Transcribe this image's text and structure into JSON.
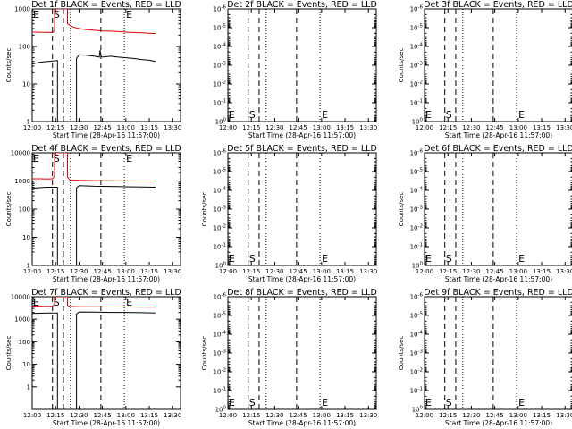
{
  "colors": {
    "events": "#000000",
    "lld": "#e00000",
    "axes": "#000000",
    "background": "#ffffff"
  },
  "x_tick_labels": [
    "12:00",
    "12:15",
    "12:30",
    "12:45",
    "13:00",
    "13:15",
    "13:30"
  ],
  "chart_data": [
    {
      "type": "line",
      "title": "Det 1f BLACK = Events, RED = LLD",
      "xlabel": "Start Time (28-Apr-16 11:57:00)",
      "ylabel": "Counts/sec",
      "scale": "log",
      "ylim": [
        1,
        1000
      ],
      "y_tick_labels": [
        "1",
        "10",
        "100",
        "1000"
      ],
      "markers": [
        "E",
        "S",
        "E"
      ],
      "has_data": true,
      "series": [
        {
          "color": "red",
          "x": [
            0,
            13,
            14.3,
            14.3,
            15,
            22.6,
            22.6,
            24,
            26,
            30,
            35,
            40,
            45,
            50,
            55,
            60,
            65,
            70,
            75,
            79
          ],
          "y": [
            240,
            235,
            260,
            1000,
            1000,
            1000,
            400,
            370,
            330,
            300,
            280,
            270,
            260,
            255,
            250,
            240,
            235,
            230,
            225,
            220
          ]
        },
        {
          "color": "black",
          "x": [
            0,
            5,
            10,
            16.2,
            16.2,
            28.4,
            28.4,
            30,
            35,
            40,
            43,
            43.5,
            44,
            45,
            50,
            55,
            60,
            65,
            70,
            75,
            79
          ],
          "y": [
            34,
            38,
            40,
            42,
            1,
            1,
            48,
            60,
            58,
            55,
            52,
            80,
            55,
            52,
            55,
            52,
            50,
            48,
            45,
            43,
            40
          ]
        }
      ]
    },
    {
      "type": "line",
      "title": "Det 2f BLACK = Events, RED = LLD",
      "xlabel": "Start Time (28-Apr-16 11:57:00)",
      "ylabel": "",
      "scale": "log",
      "ylim": [
        1,
        1e-06
      ],
      "y_tick_labels": [
        "10^0",
        "10^-1",
        "10^-2",
        "10^-3",
        "10^-4",
        "10^-5",
        "10^-6"
      ],
      "markers": [
        "E",
        "S",
        "E"
      ],
      "has_data": false,
      "series": []
    },
    {
      "type": "line",
      "title": "Det 3f BLACK = Events, RED = LLD",
      "xlabel": "Start Time (28-Apr-16 11:57:00)",
      "ylabel": "Counts/sec",
      "scale": "log",
      "ylim": [
        1,
        1e-06
      ],
      "y_tick_labels": [
        "10^0",
        "10^-1",
        "10^-2",
        "10^-3",
        "10^-4",
        "10^-5",
        "10^-6"
      ],
      "markers": [
        "E",
        "S",
        "E"
      ],
      "has_data": false,
      "series": []
    },
    {
      "type": "line",
      "title": "Det 4f BLACK = Events, RED = LLD",
      "xlabel": "Start Time (28-Apr-16 11:57:00)",
      "ylabel": "Counts/sec",
      "scale": "log",
      "ylim": [
        1,
        10000
      ],
      "y_tick_labels": [
        "1",
        "10",
        "100",
        "1000",
        "10000"
      ],
      "markers": [
        "E",
        "S",
        "E"
      ],
      "has_data": true,
      "series": [
        {
          "color": "red",
          "x": [
            0,
            5,
            10,
            13,
            14.3,
            14.3,
            15,
            22.6,
            22.6,
            24,
            30,
            40,
            50,
            60,
            70,
            79
          ],
          "y": [
            1200,
            1200,
            1180,
            1200,
            1500,
            10000,
            10000,
            10000,
            1400,
            1100,
            1050,
            1030,
            1020,
            1010,
            1000,
            1000
          ]
        },
        {
          "color": "black",
          "x": [
            0,
            5,
            10,
            16.2,
            16.2,
            28.4,
            28.4,
            30,
            40,
            50,
            60,
            70,
            79
          ],
          "y": [
            560,
            580,
            600,
            600,
            1,
            1,
            560,
            680,
            650,
            640,
            620,
            610,
            600
          ]
        }
      ]
    },
    {
      "type": "line",
      "title": "Det 5f BLACK = Events, RED = LLD",
      "xlabel": "Start Time (28-Apr-16 11:57:00)",
      "ylabel": "Counts/sec",
      "scale": "log",
      "ylim": [
        1,
        1e-06
      ],
      "y_tick_labels": [
        "10^0",
        "10^-1",
        "10^-2",
        "10^-3",
        "10^-4",
        "10^-5",
        "10^-6"
      ],
      "markers": [
        "E",
        "S",
        "E"
      ],
      "has_data": false,
      "series": []
    },
    {
      "type": "line",
      "title": "Det 6f BLACK = Events, RED = LLD",
      "xlabel": "Start Time (28-Apr-16 11:57:00)",
      "ylabel": "Counts/sec",
      "scale": "log",
      "ylim": [
        1,
        1e-06
      ],
      "y_tick_labels": [
        "10^0",
        "10^-1",
        "10^-2",
        "10^-3",
        "10^-4",
        "10^-5",
        "10^-6"
      ],
      "markers": [
        "E",
        "S",
        "E"
      ],
      "has_data": false,
      "series": []
    },
    {
      "type": "line",
      "title": "Det 7f BLACK = Events, RED = LLD",
      "xlabel": "Start Time (28-Apr-16 11:57:00)",
      "ylabel": "Counts/sec",
      "scale": "log",
      "ylim": [
        0.1,
        10000
      ],
      "y_tick_labels": [
        "1",
        "10",
        "100",
        "1000",
        "10000"
      ],
      "markers": [
        "E",
        "S",
        "E"
      ],
      "has_data": true,
      "series": [
        {
          "color": "red",
          "x": [
            0,
            5,
            10,
            13,
            14.3,
            14.3,
            15,
            22.6,
            22.6,
            24,
            30,
            40,
            50,
            60,
            70,
            79
          ],
          "y": [
            3800,
            3800,
            3700,
            3800,
            4500,
            10000,
            10000,
            10000,
            4200,
            3700,
            3600,
            3550,
            3500,
            3500,
            3480,
            3450
          ]
        },
        {
          "color": "black",
          "x": [
            0,
            5,
            10,
            16.2,
            16.2,
            28.4,
            28.4,
            30,
            40,
            50,
            60,
            70,
            79
          ],
          "y": [
            1800,
            1850,
            1900,
            1900,
            0.1,
            0.1,
            1700,
            2100,
            2050,
            2000,
            2000,
            1950,
            1900
          ]
        }
      ]
    },
    {
      "type": "line",
      "title": "Det 8f BLACK = Events, RED = LLD",
      "xlabel": "Start Time (28-Apr-16 11:57:00)",
      "ylabel": "Counts/sec",
      "scale": "log",
      "ylim": [
        1,
        1e-06
      ],
      "y_tick_labels": [
        "10^0",
        "10^-1",
        "10^-2",
        "10^-3",
        "10^-4",
        "10^-5",
        "10^-6"
      ],
      "markers": [
        "E",
        "S",
        "E"
      ],
      "has_data": false,
      "series": []
    },
    {
      "type": "line",
      "title": "Det 9f BLACK = Events, RED = LLD",
      "xlabel": "Start Time (28-Apr-16 11:57:00)",
      "ylabel": "Counts/sec",
      "scale": "log",
      "ylim": [
        1,
        1e-06
      ],
      "y_tick_labels": [
        "10^0",
        "10^-1",
        "10^-2",
        "10^-3",
        "10^-4",
        "10^-5",
        "10^-6"
      ],
      "markers": [
        "E",
        "S",
        "E"
      ],
      "has_data": false,
      "series": []
    }
  ]
}
